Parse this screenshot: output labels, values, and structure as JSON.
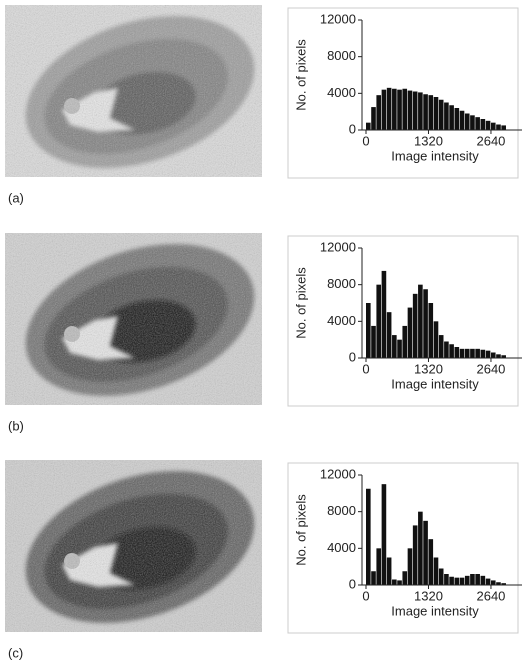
{
  "chart_data": [
    {
      "type": "histogram",
      "label": "(a)",
      "ylabel": "No. of pixels",
      "xlabel": "Image intensity",
      "color": "#111111",
      "bins": [
        0,
        110,
        220,
        330,
        440,
        550,
        660,
        770,
        880,
        990,
        1100,
        1210,
        1320,
        1430,
        1540,
        1650,
        1760,
        1870,
        1980,
        2090,
        2200,
        2310,
        2420,
        2530,
        2640,
        2750,
        2860,
        2970
      ],
      "values": [
        800,
        2500,
        3800,
        4400,
        4600,
        4500,
        4400,
        4500,
        4300,
        4200,
        4100,
        3900,
        3800,
        3600,
        3300,
        3000,
        2700,
        2400,
        2100,
        1800,
        1600,
        1400,
        1200,
        1000,
        800,
        600,
        500
      ],
      "xlim": [
        0,
        3000
      ],
      "xticks": [
        0,
        1320,
        2640
      ],
      "ylim": [
        0,
        12000
      ],
      "yticks": [
        0,
        4000,
        8000,
        12000
      ]
    },
    {
      "type": "histogram",
      "label": "(b)",
      "ylabel": "No. of pixels",
      "xlabel": "Image intensity",
      "color": "#111111",
      "bins": [
        0,
        110,
        220,
        330,
        440,
        550,
        660,
        770,
        880,
        990,
        1100,
        1210,
        1320,
        1430,
        1540,
        1650,
        1760,
        1870,
        1980,
        2090,
        2200,
        2310,
        2420,
        2530,
        2640,
        2750,
        2860,
        2970
      ],
      "values": [
        6000,
        3500,
        8000,
        9500,
        5000,
        2500,
        2000,
        3500,
        5500,
        7000,
        8000,
        7500,
        6000,
        4000,
        2500,
        1800,
        1500,
        1200,
        1000,
        1000,
        1000,
        1000,
        900,
        800,
        600,
        400,
        300
      ],
      "xlim": [
        0,
        3000
      ],
      "xticks": [
        0,
        1320,
        2640
      ],
      "ylim": [
        0,
        12000
      ],
      "yticks": [
        0,
        4000,
        8000,
        12000
      ]
    },
    {
      "type": "histogram",
      "label": "(c)",
      "ylabel": "No. of pixels",
      "xlabel": "Image intensity",
      "color": "#111111",
      "bins": [
        0,
        110,
        220,
        330,
        440,
        550,
        660,
        770,
        880,
        990,
        1100,
        1210,
        1320,
        1430,
        1540,
        1650,
        1760,
        1870,
        1980,
        2090,
        2200,
        2310,
        2420,
        2530,
        2640,
        2750,
        2860,
        2970
      ],
      "values": [
        10500,
        1500,
        4000,
        11000,
        3000,
        600,
        500,
        1500,
        4000,
        6500,
        8000,
        7000,
        5000,
        3000,
        1800,
        1200,
        900,
        800,
        800,
        1000,
        1200,
        1200,
        1000,
        700,
        500,
        300,
        200
      ],
      "xlim": [
        0,
        3000
      ],
      "xticks": [
        0,
        1320,
        2640
      ],
      "ylim": [
        0,
        12000
      ],
      "yticks": [
        0,
        4000,
        8000,
        12000
      ]
    }
  ]
}
